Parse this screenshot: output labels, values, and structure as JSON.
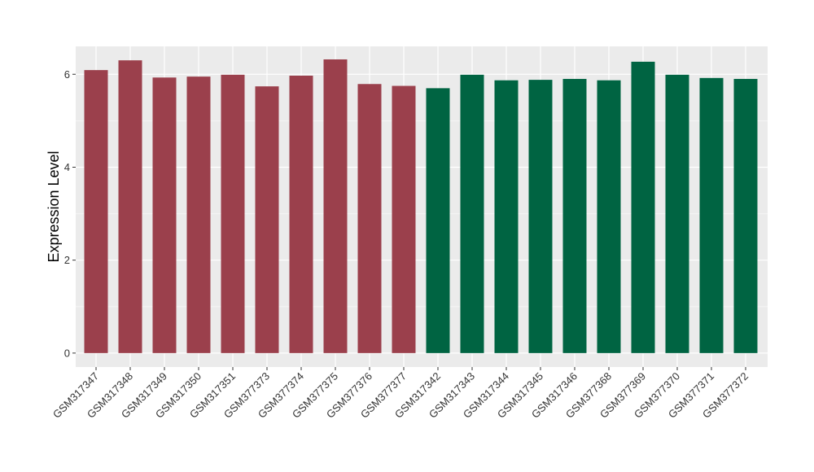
{
  "chart_data": {
    "type": "bar",
    "title": "",
    "xlabel": "",
    "ylabel": "Expression Level",
    "ylim": [
      -0.3,
      6.6
    ],
    "yticks": [
      0,
      2,
      4,
      6
    ],
    "grid": true,
    "legend": "none",
    "colors": {
      "panel": "#ebebeb",
      "grid_major": "#ffffff",
      "grid_minor": "#f5f5f5",
      "group_a": "#9b404c",
      "group_b": "#006442"
    },
    "categories": [
      "GSM317347",
      "GSM317348",
      "GSM317349",
      "GSM317350",
      "GSM317351",
      "GSM377373",
      "GSM377374",
      "GSM377375",
      "GSM377376",
      "GSM377377",
      "GSM317342",
      "GSM317343",
      "GSM317344",
      "GSM317345",
      "GSM317346",
      "GSM377368",
      "GSM377369",
      "GSM377370",
      "GSM377371",
      "GSM377372"
    ],
    "values": [
      6.09,
      6.3,
      5.93,
      5.95,
      5.99,
      5.74,
      5.97,
      6.32,
      5.79,
      5.75,
      5.7,
      5.99,
      5.87,
      5.88,
      5.9,
      5.87,
      6.27,
      5.99,
      5.92,
      5.9
    ],
    "bar_groups": [
      "a",
      "a",
      "a",
      "a",
      "a",
      "a",
      "a",
      "a",
      "a",
      "a",
      "b",
      "b",
      "b",
      "b",
      "b",
      "b",
      "b",
      "b",
      "b",
      "b"
    ]
  }
}
